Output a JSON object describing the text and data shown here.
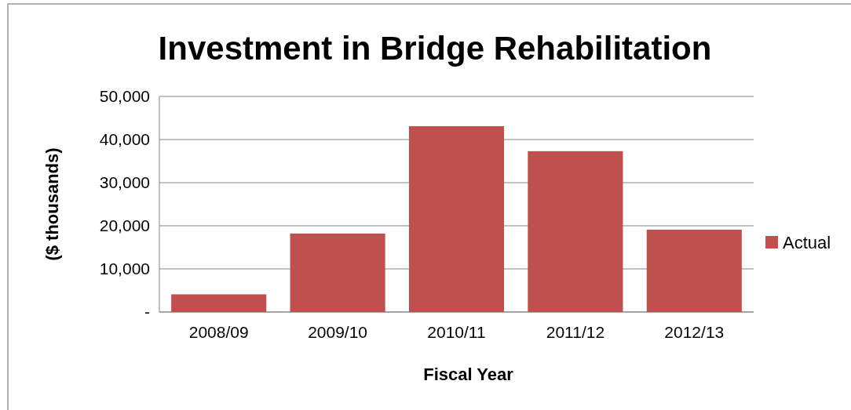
{
  "chart_data": {
    "type": "bar",
    "title": "Investment in Bridge Rehabilitation",
    "xlabel": "Fiscal Year",
    "ylabel": "($ thousands)",
    "categories": [
      "2008/09",
      "2009/10",
      "2010/11",
      "2011/12",
      "2012/13"
    ],
    "series": [
      {
        "name": "Actual",
        "color": "#c0504d",
        "values": [
          4100,
          18200,
          43100,
          37300,
          19100
        ]
      }
    ],
    "ylim": [
      0,
      50000
    ],
    "yticks": [
      {
        "value": 0,
        "label": "-"
      },
      {
        "value": 10000,
        "label": "10,000"
      },
      {
        "value": 20000,
        "label": "20,000"
      },
      {
        "value": 30000,
        "label": "30,000"
      },
      {
        "value": 40000,
        "label": "40,000"
      },
      {
        "value": 50000,
        "label": "50,000"
      }
    ],
    "grid": "y",
    "legend": "right"
  }
}
